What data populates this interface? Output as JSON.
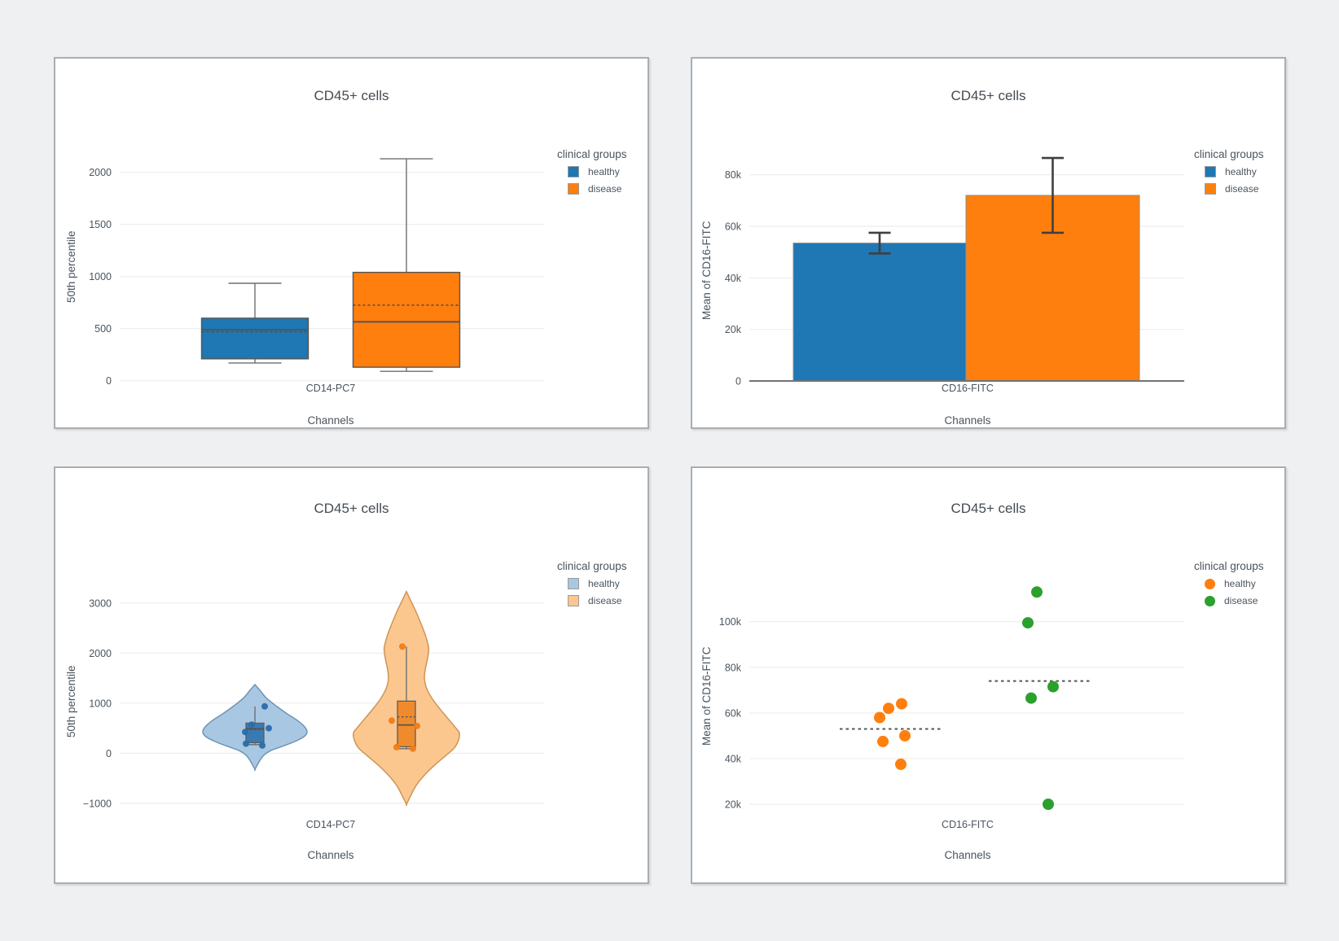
{
  "page": {
    "background": "#eef0f1",
    "card_background": "#ffffff",
    "card_border": "#aaadb1",
    "grid_color": "#e9eaeb",
    "text_color": "#4a545e"
  },
  "chart_data": [
    {
      "type": "box",
      "title": "CD45+ cells",
      "ylabel": "50th percentile",
      "xlabel": "Channels",
      "x_category": "CD14-PC7",
      "ylim": [
        -150,
        2350
      ],
      "grid": true,
      "yticks": [
        {
          "v": 0,
          "label": "0"
        },
        {
          "v": 500,
          "label": "500"
        },
        {
          "v": 1000,
          "label": "1000"
        },
        {
          "v": 1500,
          "label": "1500"
        },
        {
          "v": 2000,
          "label": "2000"
        }
      ],
      "legend": {
        "title": "clinical groups",
        "position": "right",
        "items": [
          {
            "label": "healthy",
            "color": "#1f77b4"
          },
          {
            "label": "disease",
            "color": "#ff7f0e"
          }
        ]
      },
      "groups": [
        {
          "name": "healthy",
          "color": "#1f77b4",
          "whisker_low": 170,
          "q1": 210,
          "median": 490,
          "mean": 470,
          "q3": 600,
          "whisker_high": 935
        },
        {
          "name": "disease",
          "color": "#ff7f0e",
          "whisker_low": 90,
          "q1": 130,
          "median": 565,
          "mean": 725,
          "q3": 1040,
          "whisker_high": 2130
        }
      ]
    },
    {
      "type": "bar",
      "title": "CD45+ cells",
      "ylabel": "Mean of CD16-FITC",
      "xlabel": "Channels",
      "x_category": "CD16-FITC",
      "ylim": [
        0,
        95000
      ],
      "grid": true,
      "yticks": [
        {
          "v": 0,
          "label": "0"
        },
        {
          "v": 20000,
          "label": "20k"
        },
        {
          "v": 40000,
          "label": "40k"
        },
        {
          "v": 60000,
          "label": "60k"
        },
        {
          "v": 80000,
          "label": "80k"
        }
      ],
      "legend": {
        "title": "clinical groups",
        "position": "right",
        "items": [
          {
            "label": "healthy",
            "color": "#1f77b4"
          },
          {
            "label": "disease",
            "color": "#ff7f0e"
          }
        ]
      },
      "bars": [
        {
          "name": "healthy",
          "color": "#1f77b4",
          "value": 53500,
          "error_low": 49500,
          "error_high": 57500
        },
        {
          "name": "disease",
          "color": "#ff7f0e",
          "value": 72000,
          "error_low": 57500,
          "error_high": 86500
        }
      ]
    },
    {
      "type": "violin",
      "title": "CD45+ cells",
      "ylabel": "50th percentile",
      "xlabel": "Channels",
      "x_category": "CD14-PC7",
      "ylim": [
        -1300,
        3500
      ],
      "grid": true,
      "yticks": [
        {
          "v": -1000,
          "label": "−1000"
        },
        {
          "v": 0,
          "label": "0"
        },
        {
          "v": 1000,
          "label": "1000"
        },
        {
          "v": 2000,
          "label": "2000"
        },
        {
          "v": 3000,
          "label": "3000"
        }
      ],
      "legend": {
        "title": "clinical groups",
        "position": "right",
        "items": [
          {
            "label": "healthy",
            "color": "#a8c7e2"
          },
          {
            "label": "disease",
            "color": "#fbc78f"
          }
        ]
      },
      "groups": [
        {
          "name": "healthy",
          "fill": "#a8c7e2",
          "line": "#6e94b4",
          "box_fill": "#3a7ab3",
          "point_color": "#2a6cab",
          "box": {
            "whisker_low": 170,
            "q1": 210,
            "median": 490,
            "mean": 470,
            "q3": 600,
            "whisker_high": 935
          },
          "points": [
            [
              12,
              935
            ],
            [
              -4,
              570
            ],
            [
              17,
              500
            ],
            [
              -12,
              425
            ],
            [
              -11,
              190
            ],
            [
              9,
              155
            ]
          ],
          "shape": [
            [
              1370,
              0
            ],
            [
              1250,
              0.1
            ],
            [
              1100,
              0.22
            ],
            [
              950,
              0.4
            ],
            [
              800,
              0.6
            ],
            [
              650,
              0.82
            ],
            [
              520,
              0.96
            ],
            [
              420,
              1.0
            ],
            [
              330,
              0.94
            ],
            [
              240,
              0.78
            ],
            [
              150,
              0.56
            ],
            [
              60,
              0.32
            ],
            [
              -40,
              0.17
            ],
            [
              -170,
              0.08
            ],
            [
              -320,
              0
            ]
          ]
        },
        {
          "name": "disease",
          "fill": "#fbc78f",
          "line": "#cf9454",
          "box_fill": "#f08b2d",
          "point_color": "#ef7d17",
          "box": {
            "whisker_low": 90,
            "q1": 130,
            "median": 565,
            "mean": 725,
            "q3": 1040,
            "whisker_high": 2130
          },
          "points": [
            [
              -5,
              2130
            ],
            [
              -18,
              650
            ],
            [
              13,
              545
            ],
            [
              -12,
              120
            ],
            [
              8,
              90
            ]
          ],
          "shape": [
            [
              3230,
              0
            ],
            [
              3050,
              0.08
            ],
            [
              2850,
              0.17
            ],
            [
              2600,
              0.27
            ],
            [
              2350,
              0.36
            ],
            [
              2100,
              0.42
            ],
            [
              1900,
              0.4
            ],
            [
              1700,
              0.36
            ],
            [
              1500,
              0.34
            ],
            [
              1300,
              0.38
            ],
            [
              1100,
              0.48
            ],
            [
              900,
              0.62
            ],
            [
              700,
              0.78
            ],
            [
              520,
              0.92
            ],
            [
              400,
              1.0
            ],
            [
              250,
              0.98
            ],
            [
              100,
              0.9
            ],
            [
              -50,
              0.74
            ],
            [
              -250,
              0.52
            ],
            [
              -450,
              0.33
            ],
            [
              -650,
              0.18
            ],
            [
              -850,
              0.08
            ],
            [
              -1020,
              0
            ]
          ]
        }
      ]
    },
    {
      "type": "scatter",
      "title": "CD45+ cells",
      "ylabel": "Mean of CD16-FITC",
      "xlabel": "Channels",
      "x_category": "CD16-FITC",
      "ylim": [
        12000,
        120000
      ],
      "grid": true,
      "yticks": [
        {
          "v": 20000,
          "label": "20k"
        },
        {
          "v": 40000,
          "label": "40k"
        },
        {
          "v": 60000,
          "label": "60k"
        },
        {
          "v": 80000,
          "label": "80k"
        },
        {
          "v": 100000,
          "label": "100k"
        }
      ],
      "legend": {
        "title": "clinical groups",
        "position": "right",
        "items": [
          {
            "label": "healthy",
            "color": "#ff7f0e"
          },
          {
            "label": "disease",
            "color": "#2ca02c"
          }
        ]
      },
      "series": [
        {
          "name": "healthy",
          "color": "#ff7f0e",
          "mean": 53000,
          "points": [
            [
              -15,
              58000
            ],
            [
              -4,
              62000
            ],
            [
              12,
              64000
            ],
            [
              -11,
              47500
            ],
            [
              16,
              50000
            ],
            [
              11,
              37500
            ]
          ]
        },
        {
          "name": "disease",
          "color": "#2ca02c",
          "mean": 74000,
          "points": [
            [
              -8,
              113000
            ],
            [
              -19,
              99500
            ],
            [
              12,
              71500
            ],
            [
              -15,
              66500
            ],
            [
              6,
              20000
            ]
          ]
        }
      ]
    }
  ]
}
